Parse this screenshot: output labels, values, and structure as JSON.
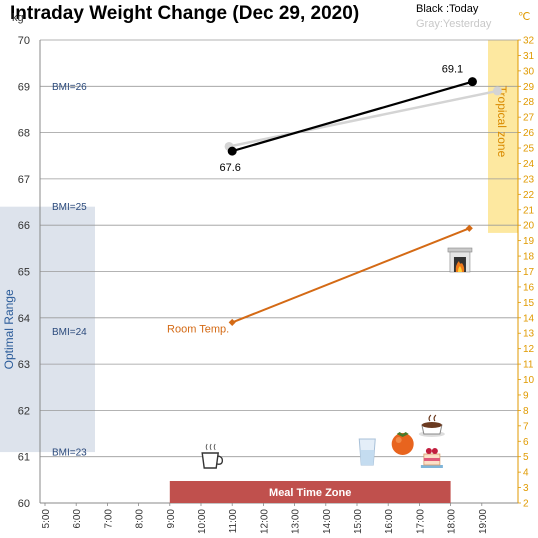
{
  "chart_data": {
    "type": "line",
    "title": "Intraday Weight Change (Dec 29, 2020)",
    "legend": {
      "today": "Black :Today",
      "yesterday": "Gray:Yesterday"
    },
    "y_left": {
      "unit": "kg",
      "range": [
        60,
        70
      ],
      "ticks": [
        "60",
        "61",
        "62",
        "63",
        "64",
        "65",
        "66",
        "67",
        "68",
        "69",
        "70"
      ]
    },
    "y_right": {
      "unit": "℃",
      "range": [
        2,
        32
      ],
      "ticks": [
        "2",
        "3",
        "4",
        "5",
        "6",
        "7",
        "8",
        "9",
        "10",
        "11",
        "12",
        "13",
        "14",
        "15",
        "16",
        "17",
        "18",
        "19",
        "20",
        "21",
        "22",
        "23",
        "24",
        "25",
        "26",
        "27",
        "28",
        "29",
        "30",
        "31",
        "32"
      ]
    },
    "x": {
      "range": [
        5,
        20
      ],
      "ticks": [
        "5:00",
        "6:00",
        "7:00",
        "8:00",
        "9:00",
        "10:00",
        "11:00",
        "12:00",
        "13:00",
        "14:00",
        "15:00",
        "16:00",
        "17:00",
        "18:00",
        "19:00"
      ]
    },
    "bmi_lines": [
      {
        "label": "BMI=26",
        "kg": 69.0
      },
      {
        "label": "BMI=25",
        "kg": 66.4
      },
      {
        "label": "BMI=24",
        "kg": 63.7
      },
      {
        "label": "BMI=23",
        "kg": 61.1
      }
    ],
    "zones": {
      "optimal": {
        "label": "Optimal Range",
        "kg_range": [
          61.1,
          66.4
        ],
        "color": "#dde3ec"
      },
      "tropical": {
        "label": "Tropical zone",
        "celsius_range": [
          19.5,
          32
        ],
        "color": "#fde8a0"
      },
      "meal": {
        "label": "Meal Time Zone",
        "time_range": [
          9,
          18
        ],
        "color": "#c0504d"
      }
    },
    "series": [
      {
        "name": "Today",
        "color": "#000000",
        "axis": "left",
        "points": [
          {
            "x": 11.0,
            "y": 67.6,
            "label": "67.6"
          },
          {
            "x": 18.7,
            "y": 69.1,
            "label": "69.1"
          }
        ]
      },
      {
        "name": "Yesterday",
        "color": "#d4d4d4",
        "axis": "left",
        "points": [
          {
            "x": 10.9,
            "y": 67.7
          },
          {
            "x": 19.5,
            "y": 68.9
          }
        ]
      },
      {
        "name": "Room Temp.",
        "color": "#d46a15",
        "axis": "right",
        "points": [
          {
            "x": 11.0,
            "y": 13.7
          },
          {
            "x": 18.6,
            "y": 19.8
          }
        ]
      }
    ],
    "temp_label": "Room Temp.",
    "icons": [
      {
        "name": "coffee-cup-icon",
        "x": 11.0
      },
      {
        "name": "water-glass-icon",
        "x": 15.2
      },
      {
        "name": "persimmon-icon",
        "x": 16.4
      },
      {
        "name": "hot-drink-icon",
        "x": 17.4
      },
      {
        "name": "cake-icon",
        "x": 17.4
      },
      {
        "name": "fireplace-icon",
        "x": 18.3
      }
    ]
  }
}
